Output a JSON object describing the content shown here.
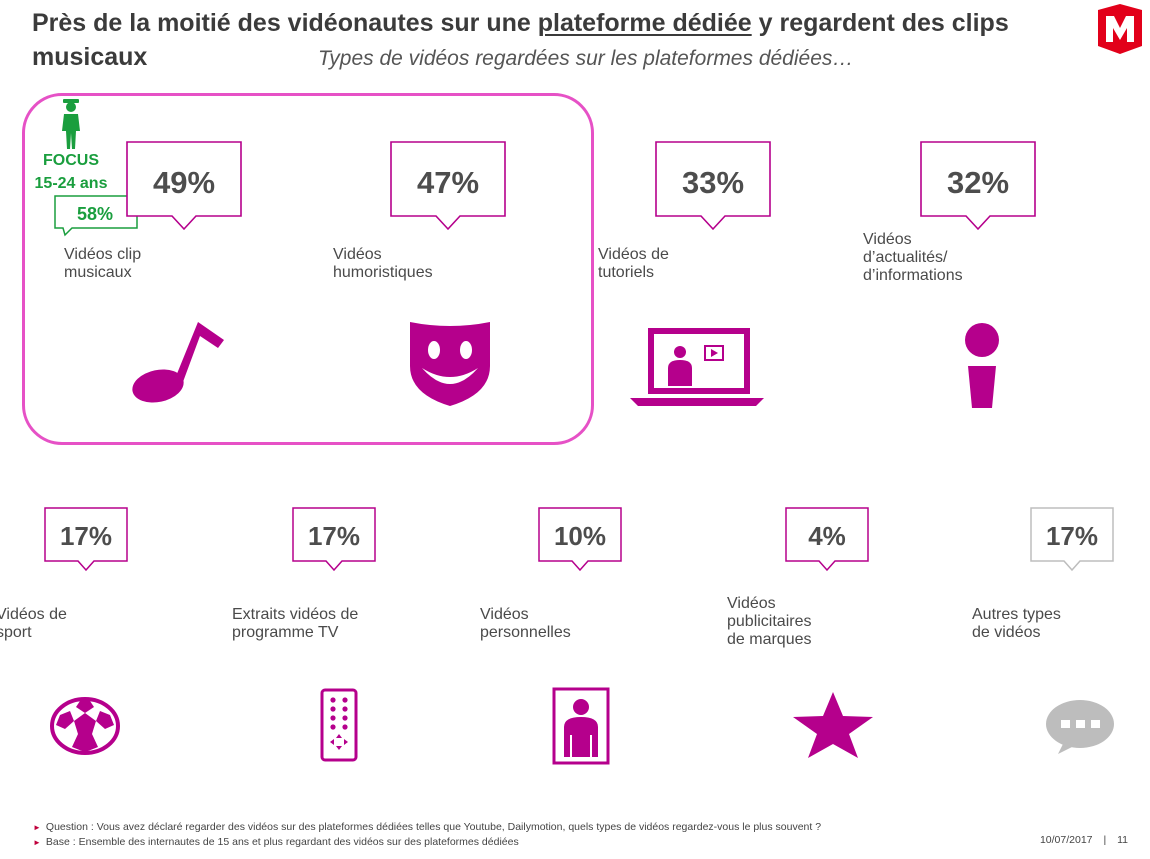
{
  "title": {
    "part1": "Près de la moitié des vidéonautes sur une ",
    "underlined": "plateforme dédiée",
    "part2": " y regardent des clips musicaux"
  },
  "subtitle": "Types de vidéos regardées sur les plateformes dédiées…",
  "logo": {
    "letter": "M",
    "color": "#e2001a"
  },
  "colors": {
    "accent": "#b5008c",
    "focus_frame": "#e651c6",
    "focus_green": "#1a9e3e",
    "other_grey": "#bdbdbd"
  },
  "focus": {
    "line1": "FOCUS",
    "line2": "15-24 ans",
    "value": "58%"
  },
  "chart_data": {
    "type": "infographic",
    "series": [
      {
        "category": "Vidéos clip musicaux",
        "value": 49,
        "display": "49%",
        "icon": "music-note-icon"
      },
      {
        "category": "Vidéos humoristiques",
        "value": 47,
        "display": "47%",
        "icon": "smiley-mask-icon"
      },
      {
        "category": "Vidéos de tutoriels",
        "value": 33,
        "display": "33%",
        "icon": "laptop-tutorial-icon"
      },
      {
        "category": "Vidéos d’actualités/ d’informations",
        "value": 32,
        "display": "32%",
        "icon": "info-icon"
      },
      {
        "category": "Vidéos de sport",
        "value": 17,
        "display": "17%",
        "icon": "soccer-ball-icon"
      },
      {
        "category": "Extraits vidéos de programme TV",
        "value": 17,
        "display": "17%",
        "icon": "remote-control-icon"
      },
      {
        "category": "Vidéos personnelles",
        "value": 10,
        "display": "10%",
        "icon": "portrait-frame-icon"
      },
      {
        "category": "Vidéos publicitaires de marques",
        "value": 4,
        "display": "4%",
        "icon": "star-icon"
      },
      {
        "category": "Autres types de vidéos",
        "value": 17,
        "display": "17%",
        "icon": "speech-bubble-icon"
      }
    ],
    "focus_segment": {
      "label": "FOCUS 15-24 ans",
      "category": "Vidéos clip musicaux",
      "value": 58,
      "display": "58%"
    }
  },
  "labels": {
    "c1": [
      "Vidéos clip",
      "musicaux"
    ],
    "c2": [
      "Vidéos",
      "humoristiques"
    ],
    "c3": [
      "Vidéos de",
      "tutoriels"
    ],
    "c4": [
      "Vidéos",
      "d’actualités/",
      "d’informations"
    ],
    "c5": [
      "Vidéos de",
      "sport"
    ],
    "c6": [
      "Extraits vidéos de",
      "programme TV"
    ],
    "c7": [
      "Vidéos",
      "personnelles"
    ],
    "c8": [
      "Vidéos",
      "publicitaires",
      "de marques"
    ],
    "c9": [
      "Autres types",
      "de vidéos"
    ]
  },
  "notes": {
    "question": "Question : Vous avez déclaré regarder des vidéos sur des plateformes dédiées telles que Youtube, Dailymotion, quels types de vidéos regardez-vous le plus souvent ?",
    "base": "Base : Ensemble des internautes de 15 ans et plus regardant des vidéos sur des plateformes dédiées",
    "date": "10/07/2017",
    "separator": "|",
    "page": "11"
  }
}
